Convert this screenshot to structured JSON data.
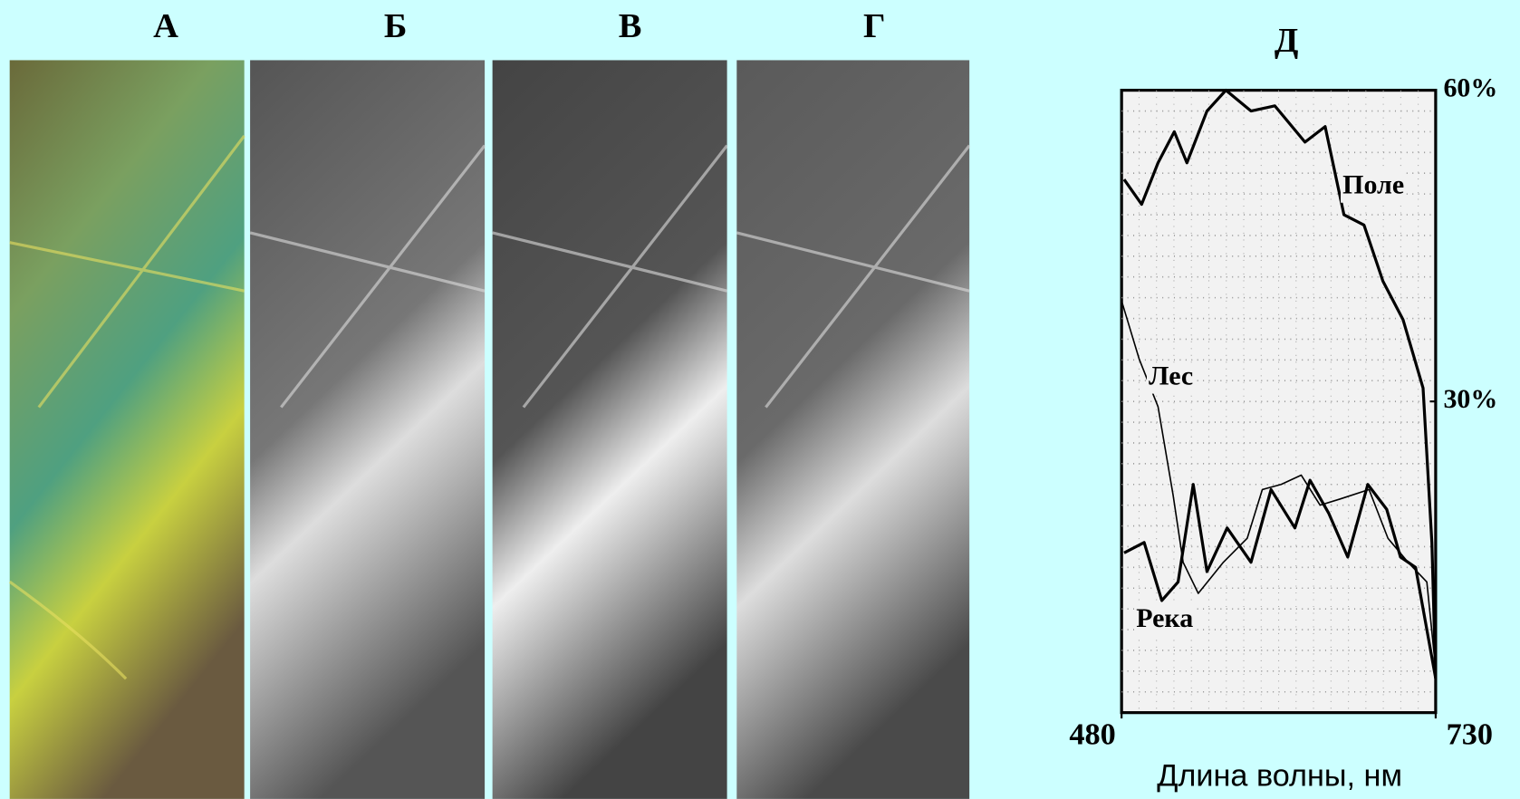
{
  "panels": {
    "labels": [
      "А",
      "Б",
      "В",
      "Г"
    ]
  },
  "chart_data": {
    "type": "line",
    "title": "Д",
    "x_label": "Длина волны, нм",
    "xlim": [
      480,
      730
    ],
    "xticks": [
      480,
      730
    ],
    "ylim": [
      0,
      60
    ],
    "yticks": [
      {
        "value": 60,
        "label": "60%"
      },
      {
        "value": 30,
        "label": "30%"
      }
    ],
    "grid": true,
    "series": [
      {
        "name": "Поле",
        "color": "#000000",
        "x": [
          482,
          496,
          509,
          522,
          532,
          548,
          563,
          583,
          602,
          626,
          642,
          657,
          673,
          688,
          704,
          720,
          727,
          730
        ],
        "values": [
          51.4,
          49,
          53,
          56,
          53,
          58,
          60,
          58,
          58.5,
          55,
          56.5,
          48,
          47,
          41.6,
          37.9,
          31.3,
          16.4,
          3.3
        ]
      },
      {
        "name": "Лес",
        "color": "#000000",
        "x": [
          480,
          494,
          509,
          521,
          529,
          541,
          561,
          580,
          592,
          607,
          623,
          638,
          654,
          677,
          692,
          708,
          723,
          730
        ],
        "values": [
          39.7,
          34.1,
          29.5,
          21,
          14.5,
          11.5,
          14.5,
          16.8,
          21.5,
          22,
          22.9,
          20,
          20.6,
          21.5,
          16.8,
          14.5,
          12.6,
          4.2
        ]
      },
      {
        "name": "Река",
        "color": "#000000",
        "x": [
          482,
          498,
          512,
          525,
          537,
          548,
          564,
          583,
          599,
          618,
          630,
          645,
          660,
          676,
          691,
          702,
          714,
          730
        ],
        "values": [
          15.4,
          16.4,
          10.8,
          12.6,
          22,
          13.6,
          17.8,
          14.5,
          21.5,
          17.8,
          22.4,
          19.2,
          15,
          22,
          19.6,
          15,
          14,
          3.3
        ]
      }
    ]
  }
}
